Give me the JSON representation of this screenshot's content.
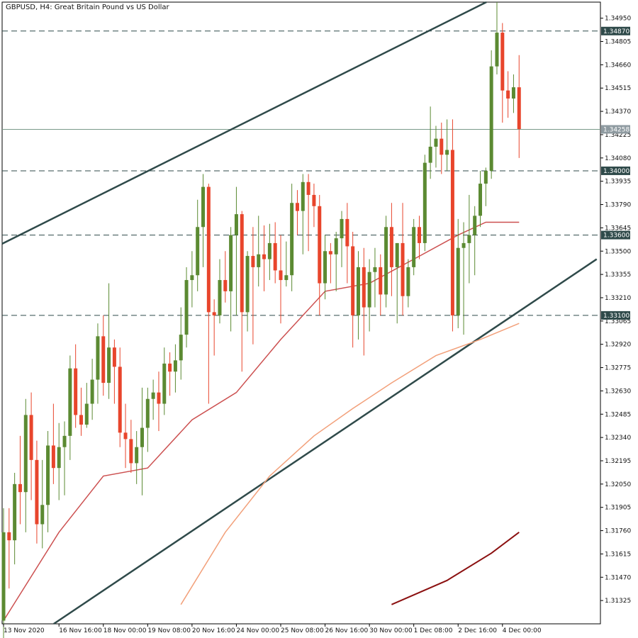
{
  "title": "GBPUSD, H4:  Great Britain Pound vs US Dollar",
  "colors": {
    "bull": "#5b8a32",
    "bear": "#e8452c",
    "wick": "#5b8a32",
    "ma_fast": "#cc5050",
    "ma_mid": "#f2a07a",
    "ma_slow": "#8b1010",
    "channel": "#2f4a4a",
    "level_line": "#2f4a4a",
    "current_line": "#7a9a8a",
    "badge_bg": "#2f4a4a",
    "badge_current_bg": "#8e9aa0"
  },
  "chart_data": {
    "type": "candlestick",
    "symbol": "GBPUSD",
    "timeframe": "H4",
    "y_ticks": [
      "1.34950",
      "1.34805",
      "1.34660",
      "1.34515",
      "1.34370",
      "1.34225",
      "1.34080",
      "1.33935",
      "1.33790",
      "1.33645",
      "1.33500",
      "1.33355",
      "1.33210",
      "1.33065",
      "1.32920",
      "1.32775",
      "1.32630",
      "1.32485",
      "1.32340",
      "1.32195",
      "1.32050",
      "1.31905",
      "1.31760",
      "1.31615",
      "1.31470",
      "1.31325"
    ],
    "ylim": [
      1.3118,
      1.3505
    ],
    "x_ticks": [
      {
        "label": "13 Nov 2020",
        "index": 0
      },
      {
        "label": "16 Nov 16:00",
        "index": 10
      },
      {
        "label": "18 Nov 00:00",
        "index": 18
      },
      {
        "label": "19 Nov 08:00",
        "index": 26
      },
      {
        "label": "20 Nov 16:00",
        "index": 34
      },
      {
        "label": "24 Nov 00:00",
        "index": 42
      },
      {
        "label": "25 Nov 08:00",
        "index": 50
      },
      {
        "label": "26 Nov 16:00",
        "index": 58
      },
      {
        "label": "30 Nov 00:00",
        "index": 66
      },
      {
        "label": "1 Dec 08:00",
        "index": 74
      },
      {
        "label": "2 Dec 16:00",
        "index": 82
      },
      {
        "label": "4 Dec 00:00",
        "index": 90
      }
    ],
    "levels": [
      {
        "label": "1.34870",
        "value": 1.3487,
        "style": "dashed"
      },
      {
        "label": "1.34258",
        "value": 1.34258,
        "style": "solid",
        "current": true
      },
      {
        "label": "1.34000",
        "value": 1.34,
        "style": "dashed"
      },
      {
        "label": "1.33600",
        "value": 1.336,
        "style": "dashed"
      },
      {
        "label": "1.33100",
        "value": 1.331,
        "style": "dashed"
      }
    ],
    "channel_lines": [
      {
        "i1": 0,
        "v1": 1.3355,
        "i2": 90,
        "v2": 1.351
      },
      {
        "i1": 0,
        "v1": 1.3097,
        "i2": 107,
        "v2": 1.3345
      }
    ],
    "candles": [
      [
        1.312,
        1.319,
        1.3105,
        1.3175
      ],
      [
        1.3175,
        1.319,
        1.314,
        1.317
      ],
      [
        1.317,
        1.3212,
        1.3155,
        1.3205
      ],
      [
        1.3205,
        1.3235,
        1.318,
        1.32
      ],
      [
        1.32,
        1.3258,
        1.3175,
        1.3248
      ],
      [
        1.3248,
        1.3262,
        1.3195,
        1.322
      ],
      [
        1.322,
        1.3232,
        1.3168,
        1.318
      ],
      [
        1.318,
        1.322,
        1.3165,
        1.3192
      ],
      [
        1.3192,
        1.3238,
        1.3175,
        1.3229
      ],
      [
        1.3229,
        1.3255,
        1.3205,
        1.3215
      ],
      [
        1.3215,
        1.3243,
        1.3195,
        1.3228
      ],
      [
        1.3228,
        1.3244,
        1.3198,
        1.3235
      ],
      [
        1.3235,
        1.3285,
        1.322,
        1.3277
      ],
      [
        1.3277,
        1.3292,
        1.324,
        1.3248
      ],
      [
        1.3248,
        1.3265,
        1.3235,
        1.3242
      ],
      [
        1.3242,
        1.3268,
        1.324,
        1.3255
      ],
      [
        1.3255,
        1.3283,
        1.3245,
        1.327
      ],
      [
        1.327,
        1.3305,
        1.3255,
        1.3297
      ],
      [
        1.3297,
        1.331,
        1.326,
        1.3268
      ],
      [
        1.3268,
        1.333,
        1.3258,
        1.329
      ],
      [
        1.329,
        1.3295,
        1.3255,
        1.3278
      ],
      [
        1.3278,
        1.329,
        1.3228,
        1.3237
      ],
      [
        1.3237,
        1.3255,
        1.3215,
        1.3233
      ],
      [
        1.3233,
        1.3245,
        1.3212,
        1.3218
      ],
      [
        1.3218,
        1.3238,
        1.3205,
        1.3228
      ],
      [
        1.3228,
        1.3265,
        1.3198,
        1.324
      ],
      [
        1.324,
        1.3265,
        1.3225,
        1.3258
      ],
      [
        1.3258,
        1.327,
        1.3245,
        1.3262
      ],
      [
        1.3262,
        1.3275,
        1.3238,
        1.3255
      ],
      [
        1.3255,
        1.329,
        1.3248,
        1.328
      ],
      [
        1.328,
        1.3287,
        1.326,
        1.3275
      ],
      [
        1.3275,
        1.3292,
        1.3262,
        1.3282
      ],
      [
        1.3282,
        1.3315,
        1.327,
        1.3298
      ],
      [
        1.3298,
        1.334,
        1.329,
        1.3332
      ],
      [
        1.3332,
        1.335,
        1.3315,
        1.3335
      ],
      [
        1.3335,
        1.3382,
        1.3325,
        1.3365
      ],
      [
        1.3365,
        1.3398,
        1.334,
        1.339
      ],
      [
        1.339,
        1.3392,
        1.3255,
        1.3312
      ],
      [
        1.3312,
        1.332,
        1.3285,
        1.331
      ],
      [
        1.331,
        1.3345,
        1.3305,
        1.3332
      ],
      [
        1.3332,
        1.335,
        1.3318,
        1.3325
      ],
      [
        1.3325,
        1.3365,
        1.33,
        1.336
      ],
      [
        1.336,
        1.339,
        1.331,
        1.3373
      ],
      [
        1.3373,
        1.3375,
        1.3275,
        1.3312
      ],
      [
        1.3312,
        1.335,
        1.33,
        1.3347
      ],
      [
        1.3347,
        1.3365,
        1.3292,
        1.334
      ],
      [
        1.334,
        1.3372,
        1.3328,
        1.3348
      ],
      [
        1.3348,
        1.3366,
        1.3325,
        1.3345
      ],
      [
        1.3345,
        1.3367,
        1.3332,
        1.3355
      ],
      [
        1.3355,
        1.3368,
        1.333,
        1.3338
      ],
      [
        1.3338,
        1.336,
        1.3305,
        1.3332
      ],
      [
        1.3332,
        1.3356,
        1.3328,
        1.3335
      ],
      [
        1.3335,
        1.3392,
        1.3325,
        1.338
      ],
      [
        1.338,
        1.3388,
        1.336,
        1.3375
      ],
      [
        1.3375,
        1.3398,
        1.3348,
        1.3393
      ],
      [
        1.3393,
        1.3398,
        1.335,
        1.3385
      ],
      [
        1.3385,
        1.3392,
        1.3365,
        1.3378
      ],
      [
        1.3378,
        1.3385,
        1.331,
        1.333
      ],
      [
        1.333,
        1.336,
        1.332,
        1.335
      ],
      [
        1.335,
        1.3355,
        1.333,
        1.3348
      ],
      [
        1.3348,
        1.3362,
        1.3325,
        1.3358
      ],
      [
        1.3358,
        1.3375,
        1.334,
        1.337
      ],
      [
        1.337,
        1.338,
        1.333,
        1.3353
      ],
      [
        1.3353,
        1.3362,
        1.329,
        1.331
      ],
      [
        1.331,
        1.335,
        1.3295,
        1.334
      ],
      [
        1.334,
        1.3352,
        1.3285,
        1.3315
      ],
      [
        1.3315,
        1.3345,
        1.33,
        1.3337
      ],
      [
        1.3337,
        1.3352,
        1.3315,
        1.334
      ],
      [
        1.334,
        1.3348,
        1.331,
        1.3323
      ],
      [
        1.3323,
        1.3372,
        1.3315,
        1.3365
      ],
      [
        1.3365,
        1.338,
        1.3322,
        1.334
      ],
      [
        1.334,
        1.3355,
        1.3305,
        1.3355
      ],
      [
        1.3355,
        1.338,
        1.331,
        1.3322
      ],
      [
        1.3322,
        1.3345,
        1.3315,
        1.334
      ],
      [
        1.334,
        1.337,
        1.3335,
        1.3365
      ],
      [
        1.3365,
        1.3372,
        1.3345,
        1.3355
      ],
      [
        1.3355,
        1.341,
        1.335,
        1.3405
      ],
      [
        1.3405,
        1.344,
        1.3395,
        1.3415
      ],
      [
        1.3415,
        1.3428,
        1.3402,
        1.342
      ],
      [
        1.342,
        1.343,
        1.3398,
        1.341
      ],
      [
        1.341,
        1.3432,
        1.34,
        1.3413
      ],
      [
        1.3413,
        1.3432,
        1.33,
        1.331
      ],
      [
        1.331,
        1.337,
        1.3302,
        1.3352
      ],
      [
        1.3352,
        1.3368,
        1.3298,
        1.3355
      ],
      [
        1.3355,
        1.3385,
        1.333,
        1.336
      ],
      [
        1.336,
        1.3378,
        1.3335,
        1.3372
      ],
      [
        1.3372,
        1.34,
        1.3365,
        1.3392
      ],
      [
        1.3392,
        1.3402,
        1.3378,
        1.34
      ],
      [
        1.34,
        1.3475,
        1.3395,
        1.3465
      ],
      [
        1.3465,
        1.3505,
        1.346,
        1.3486
      ],
      [
        1.3486,
        1.3492,
        1.343,
        1.345
      ],
      [
        1.345,
        1.3462,
        1.3433,
        1.3445
      ],
      [
        1.3445,
        1.346,
        1.3436,
        1.3452
      ],
      [
        1.3452,
        1.3472,
        1.3408,
        1.3426
      ]
    ],
    "ma_fast": [
      [
        0,
        1.312
      ],
      [
        10,
        1.3175
      ],
      [
        18,
        1.321
      ],
      [
        26,
        1.3215
      ],
      [
        34,
        1.3245
      ],
      [
        42,
        1.3262
      ],
      [
        50,
        1.3295
      ],
      [
        58,
        1.3325
      ],
      [
        66,
        1.333
      ],
      [
        74,
        1.3345
      ],
      [
        82,
        1.336
      ],
      [
        87,
        1.3368
      ],
      [
        93,
        1.3368
      ]
    ],
    "ma_mid": [
      [
        32,
        1.313
      ],
      [
        40,
        1.3175
      ],
      [
        48,
        1.321
      ],
      [
        56,
        1.3235
      ],
      [
        63,
        1.3252
      ],
      [
        70,
        1.3268
      ],
      [
        78,
        1.3285
      ],
      [
        86,
        1.3295
      ],
      [
        93,
        1.3305
      ]
    ],
    "ma_slow": [
      [
        70,
        1.313
      ],
      [
        80,
        1.3145
      ],
      [
        88,
        1.3162
      ],
      [
        93,
        1.3175
      ]
    ]
  }
}
